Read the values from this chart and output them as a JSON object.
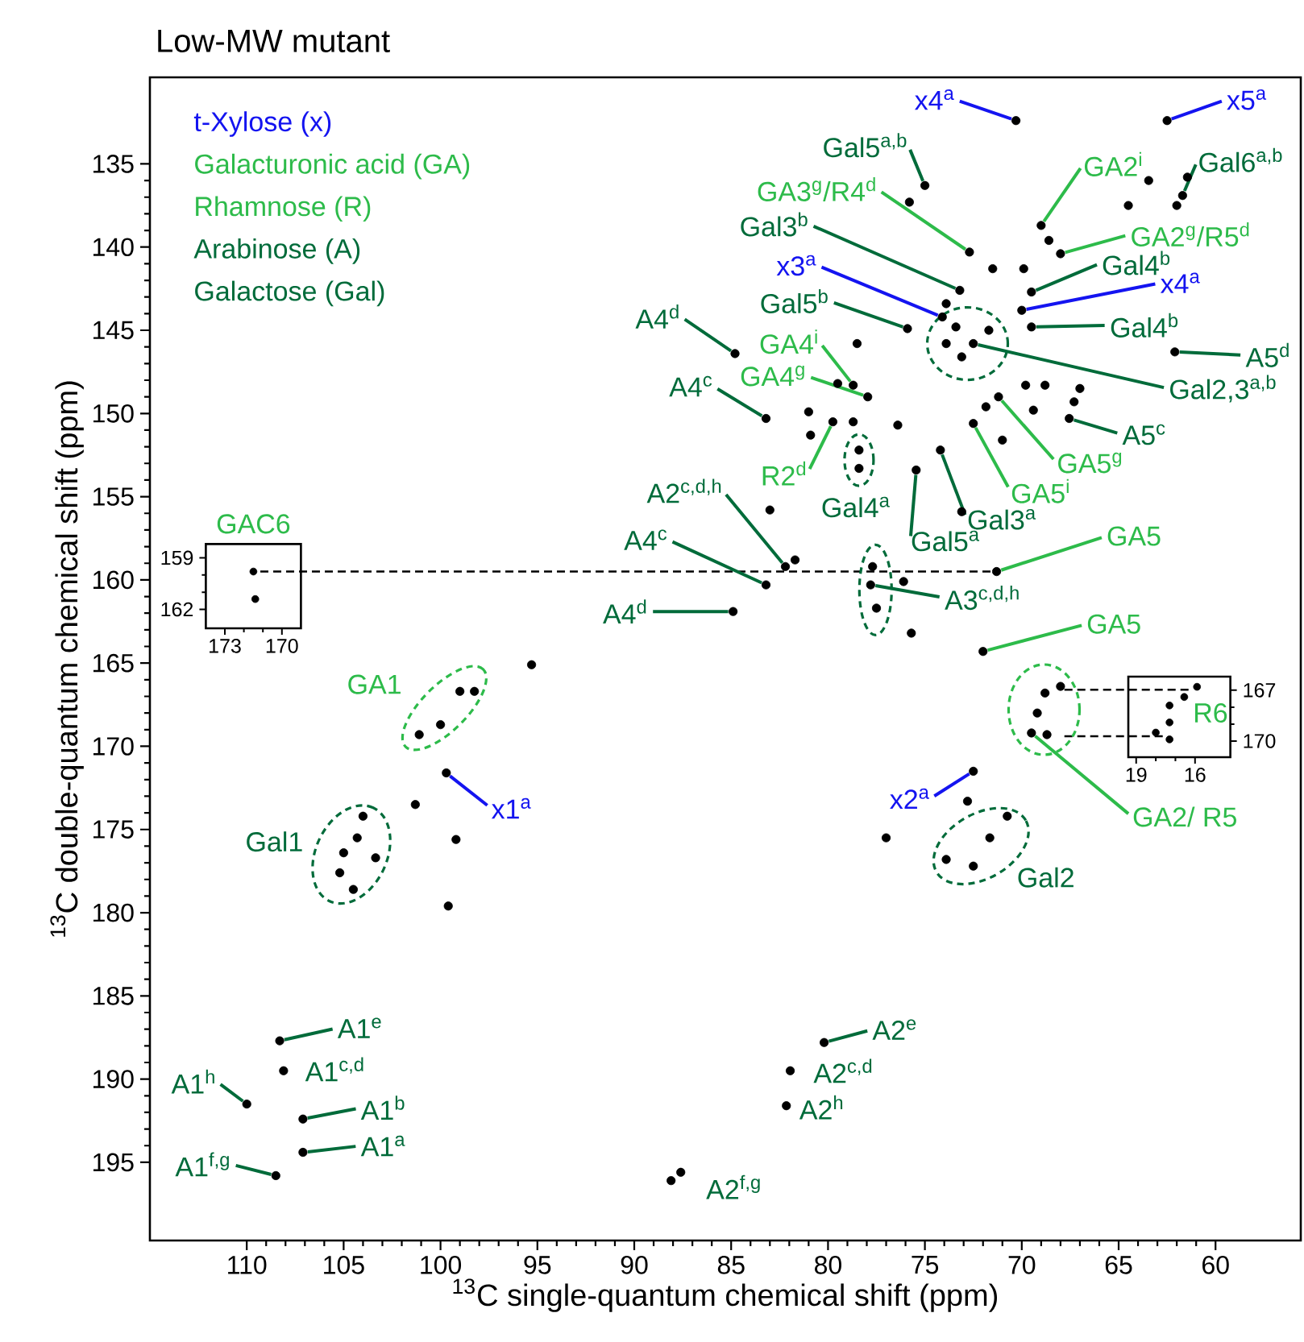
{
  "chart_data": [
    {
      "type": "scatter",
      "title": "Low-MW mutant",
      "xlabel": "$^{13}$C single-quantum chemical shift (ppm)",
      "ylabel": "$^{13}$C double-quantum chemical shift (ppm)",
      "xlim": [
        115,
        55.6
      ],
      "ylim": [
        199.7,
        129.8
      ],
      "xticks": [
        110,
        105,
        100,
        95,
        90,
        85,
        80,
        75,
        70,
        65,
        60
      ],
      "yticks": [
        135,
        140,
        145,
        150,
        155,
        160,
        165,
        170,
        175,
        180,
        185,
        190,
        195
      ],
      "marker": "circle",
      "series": [
        {
          "color": "#000000",
          "x": [
            70.3,
            62.5,
            61.45,
            61.7,
            62.0,
            69.0,
            64.5,
            63.45,
            68.6,
            68.0,
            75.8,
            75.0,
            72.7,
            71.5,
            69.9,
            73.2,
            73.9,
            74.1,
            73.9,
            72.5,
            71.7,
            73.4,
            73.1,
            75.9,
            69.5,
            70.0,
            69.5,
            62.1,
            69.8,
            68.8,
            67.0,
            67.55,
            67.3,
            69.4,
            71.2,
            71.85,
            72.5,
            71.0,
            74.2,
            75.45,
            73.1,
            78.7,
            77.95,
            78.5,
            79.75,
            78.7,
            81.0,
            80.9,
            79.5,
            78.4,
            78.4,
            76.4,
            83.2,
            84.8,
            83.0,
            82.2,
            81.7,
            83.2,
            84.9,
            77.7,
            77.8,
            77.5,
            76.1,
            75.7,
            71.3,
            72.0,
            68.0,
            68.8,
            69.2,
            69.5,
            68.7,
            72.5,
            72.8,
            77.0,
            70.75,
            71.65,
            73.9,
            72.5,
            80.2,
            81.95,
            82.15,
            88.1,
            87.6,
            95.3,
            99.0,
            98.25,
            100.0,
            101.1,
            99.7,
            101.3,
            99.2,
            104.0,
            104.3,
            105.0,
            105.2,
            103.35,
            104.5,
            99.6,
            108.3,
            108.1,
            110.0,
            107.1,
            107.1,
            108.5
          ],
          "values": [
            132.4,
            132.4,
            135.8,
            136.9,
            137.5,
            138.7,
            137.5,
            136.0,
            139.6,
            140.4,
            137.3,
            136.3,
            140.3,
            141.3,
            141.3,
            142.6,
            143.4,
            144.2,
            145.8,
            145.8,
            145.0,
            144.8,
            146.6,
            144.9,
            142.7,
            143.8,
            144.8,
            146.3,
            148.3,
            148.3,
            148.5,
            150.3,
            149.3,
            149.8,
            149.0,
            149.6,
            150.6,
            151.6,
            152.2,
            153.4,
            155.9,
            148.3,
            149.0,
            145.8,
            150.5,
            150.5,
            149.9,
            151.3,
            148.2,
            152.2,
            153.3,
            150.7,
            150.3,
            146.4,
            155.8,
            159.2,
            158.8,
            160.3,
            161.9,
            159.2,
            160.3,
            161.7,
            160.1,
            163.2,
            159.5,
            164.3,
            166.4,
            166.8,
            168.0,
            169.2,
            169.3,
            171.5,
            173.3,
            175.5,
            174.2,
            175.5,
            176.8,
            177.2,
            187.8,
            189.5,
            191.6,
            196.1,
            195.6,
            165.1,
            166.7,
            166.7,
            168.7,
            169.3,
            171.6,
            173.5,
            175.6,
            174.2,
            175.5,
            176.4,
            177.6,
            176.7,
            178.6,
            179.6,
            187.7,
            189.5,
            191.5,
            192.4,
            194.4,
            195.8
          ]
        }
      ],
      "ref_lines": [
        {
          "axis": "y",
          "value": 159.5,
          "line_style": "dashed"
        },
        {
          "axis": "y",
          "value": 166.6,
          "line_style": "dashed"
        },
        {
          "axis": "y",
          "value": 169.4,
          "line_style": "dashed"
        }
      ],
      "annotations": [
        "t-Xylose (x)",
        "Galacturonic acid (GA)",
        "Rhamnose (R)",
        "Arabinose (A)",
        "Galactose (Gal)",
        {
          "text": "x4$^{a}$",
          "x": 70.3,
          "y": 132.4
        },
        {
          "text": "x5$^{a}$",
          "x": 62.5,
          "y": 132.4
        },
        {
          "text": "Gal5$^{a,b}$",
          "x": 75.0,
          "y": 136.3
        },
        {
          "text": "GA3$^{g}$/R4$^{d}$",
          "x": 72.7,
          "y": 140.3
        },
        {
          "text": "Gal3$^{b}$",
          "x": 73.2,
          "y": 142.6
        },
        {
          "text": "x3$^{a}$",
          "x": 74.1,
          "y": 144.2
        },
        {
          "text": "Gal5$^{b}$",
          "x": 75.9,
          "y": 144.9
        },
        {
          "text": "GA4$^{i}$",
          "x": 78.7,
          "y": 148.3
        },
        {
          "text": "GA4$^{g}$",
          "x": 77.95,
          "y": 149.0
        },
        {
          "text": "R2$^{d}$",
          "x": 79.75,
          "y": 150.5
        },
        {
          "text": "Gal4$^{a}$",
          "x": 78.4,
          "y": 153.3
        },
        {
          "text": "Gal5$^{a}$",
          "x": 75.45,
          "y": 153.4
        },
        {
          "text": "Gal3$^{a}$",
          "x": 74.2,
          "y": 152.2
        },
        {
          "text": "GA5$^{i}$",
          "x": 72.5,
          "y": 150.6
        },
        {
          "text": "GA5$^{g}$",
          "x": 71.2,
          "y": 149.0
        },
        {
          "text": "A5$^{c}$",
          "x": 67.55,
          "y": 150.3
        },
        {
          "text": "Gal2,3$^{a,b}$",
          "x": 72.5,
          "y": 145.8
        },
        {
          "text": "A5$^{d}$",
          "x": 62.1,
          "y": 146.3
        },
        {
          "text": "Gal4$^{b}$",
          "x": 69.5,
          "y": 144.8
        },
        {
          "text": "x4$^{a}$",
          "x": 70.0,
          "y": 143.8
        },
        {
          "text": "Gal4$^{b}$",
          "x": 69.5,
          "y": 142.7
        },
        {
          "text": "GA2$^{g}$/R5$^{d}$",
          "x": 68.0,
          "y": 140.4
        },
        {
          "text": "GA2$^{i}$",
          "x": 69.0,
          "y": 138.7
        },
        {
          "text": "Gal6$^{a,b}$",
          "x": 61.7,
          "y": 136.9
        },
        {
          "text": "A4$^{d}$",
          "x": 84.8,
          "y": 146.4
        },
        {
          "text": "A4$^{c}$",
          "x": 83.2,
          "y": 150.3
        },
        {
          "text": "A2$^{c,d,h}$",
          "x": 82.2,
          "y": 159.2
        },
        {
          "text": "A4$^{c}$",
          "x": 83.2,
          "y": 160.3
        },
        {
          "text": "A4$^{d}$",
          "x": 84.9,
          "y": 161.9
        },
        {
          "text": "A3$^{c,d,h}$",
          "x": 77.8,
          "y": 160.3
        },
        {
          "text": "GA5",
          "x": 71.3,
          "y": 159.5
        },
        {
          "text": "GA5",
          "x": 72.0,
          "y": 164.3
        },
        {
          "text": "GA2/ R5",
          "x": 69.5,
          "y": 169.2
        },
        {
          "text": "x2$^{a}$",
          "x": 72.5,
          "y": 171.5
        },
        {
          "text": "Gal2",
          "x": 72.5,
          "y": 177.2
        },
        {
          "text": "A2$^{e}$",
          "x": 80.2,
          "y": 187.8
        },
        {
          "text": "A2$^{c,d}$",
          "x": 81.95,
          "y": 189.5
        },
        {
          "text": "A2$^{h}$",
          "x": 82.15,
          "y": 191.6
        },
        {
          "text": "A2$^{f,g}$",
          "x": 88.1,
          "y": 196.1
        },
        {
          "text": "GA1",
          "x": 100.0,
          "y": 168.7
        },
        {
          "text": "x1$^{a}$",
          "x": 99.7,
          "y": 171.6
        },
        {
          "text": "Gal1",
          "x": 105.0,
          "y": 176.4
        },
        {
          "text": "A1$^{e}$",
          "x": 108.3,
          "y": 187.7
        },
        {
          "text": "A1$^{c,d}$",
          "x": 108.1,
          "y": 189.5
        },
        {
          "text": "A1$^{h}$",
          "x": 110.0,
          "y": 191.5
        },
        {
          "text": "A1$^{b}$",
          "x": 107.1,
          "y": 192.4
        },
        {
          "text": "A1$^{a}$",
          "x": 107.1,
          "y": 194.4
        },
        {
          "text": "A1$^{f,g}$",
          "x": 108.5,
          "y": 195.8
        }
      ]
    },
    {
      "type": "scatter",
      "title": "GAC6",
      "xlim": [
        174,
        169
      ],
      "ylim": [
        163.1,
        158.2
      ],
      "xticks": [
        173,
        170
      ],
      "yticks": [
        159,
        162
      ],
      "marker": "circle",
      "series": [
        {
          "color": "#000000",
          "x": [
            171.5,
            171.4
          ],
          "values": [
            159.8,
            161.4
          ]
        }
      ]
    },
    {
      "type": "scatter",
      "xlim": [
        19.4,
        14.2
      ],
      "ylim": [
        170.95,
        166.2
      ],
      "xticks": [
        19,
        16
      ],
      "yticks": [
        167,
        170
      ],
      "marker": "circle",
      "series": [
        {
          "color": "#000000",
          "x": [
            15.9,
            16.55,
            17.3,
            17.3,
            17.3,
            18.0
          ],
          "values": [
            166.8,
            167.4,
            167.9,
            168.9,
            169.9,
            169.5
          ]
        }
      ],
      "annotations": [
        "R6"
      ]
    }
  ]
}
